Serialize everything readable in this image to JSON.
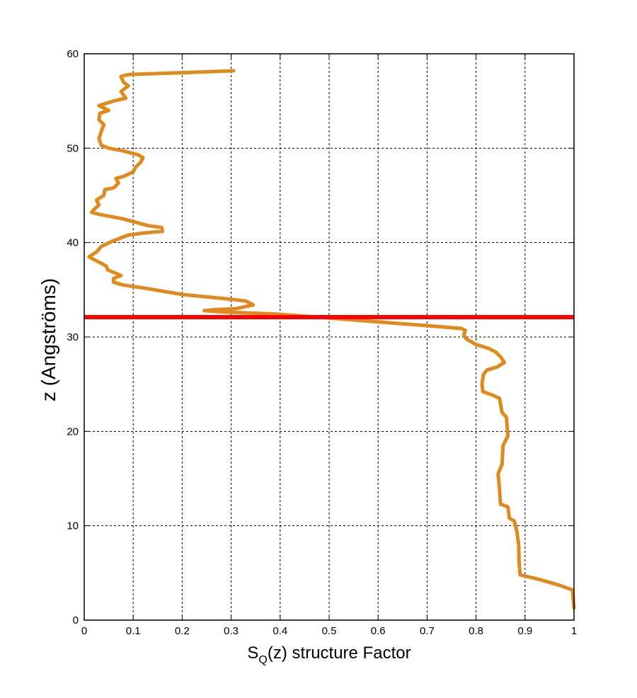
{
  "chart_data": {
    "type": "line",
    "xlabel_main": "S",
    "xlabel_sub": "Q",
    "xlabel_rest": "(z) structure Factor",
    "ylabel": "z (Angströms)",
    "xlim": [
      0,
      1
    ],
    "ylim": [
      0,
      60
    ],
    "xticks": [
      0,
      0.1,
      0.2,
      0.3,
      0.4,
      0.5,
      0.6,
      0.7,
      0.8,
      0.9,
      1
    ],
    "xtick_labels": [
      "0",
      "0.1",
      "0.2",
      "0.3",
      "0.4",
      "0.5",
      "0.6",
      "0.7",
      "0.8",
      "0.9",
      "1"
    ],
    "yticks": [
      0,
      10,
      20,
      30,
      40,
      50,
      60
    ],
    "ytick_labels": [
      "0",
      "10",
      "20",
      "30",
      "40",
      "50",
      "60"
    ],
    "grid": true,
    "reference_line": {
      "orientation": "horizontal",
      "y": 32.1,
      "color": "#ff0000"
    },
    "series": [
      {
        "color": "#e08a1e",
        "points": [
          [
            1.0,
            1.3
          ],
          [
            0.997,
            3.2
          ],
          [
            0.97,
            3.7
          ],
          [
            0.93,
            4.3
          ],
          [
            0.89,
            4.8
          ],
          [
            0.888,
            6.0
          ],
          [
            0.887,
            8.0
          ],
          [
            0.883,
            9.5
          ],
          [
            0.878,
            10.5
          ],
          [
            0.868,
            10.8
          ],
          [
            0.865,
            12.0
          ],
          [
            0.85,
            12.3
          ],
          [
            0.847,
            14.5
          ],
          [
            0.845,
            15.5
          ],
          [
            0.853,
            16.5
          ],
          [
            0.855,
            18.5
          ],
          [
            0.865,
            19.5
          ],
          [
            0.862,
            21.5
          ],
          [
            0.853,
            22.0
          ],
          [
            0.848,
            23.5
          ],
          [
            0.836,
            23.8
          ],
          [
            0.814,
            24.2
          ],
          [
            0.812,
            25.0
          ],
          [
            0.815,
            26.0
          ],
          [
            0.822,
            26.5
          ],
          [
            0.842,
            26.8
          ],
          [
            0.858,
            27.3
          ],
          [
            0.85,
            27.9
          ],
          [
            0.84,
            28.4
          ],
          [
            0.825,
            28.8
          ],
          [
            0.8,
            29.2
          ],
          [
            0.78,
            29.8
          ],
          [
            0.775,
            30.2
          ],
          [
            0.778,
            30.7
          ],
          [
            0.77,
            30.9
          ],
          [
            0.7,
            31.2
          ],
          [
            0.6,
            31.6
          ],
          [
            0.5,
            32.0
          ],
          [
            0.45,
            32.2
          ],
          [
            0.4,
            32.4
          ],
          [
            0.36,
            32.5
          ],
          [
            0.3,
            32.6
          ],
          [
            0.27,
            32.7
          ],
          [
            0.245,
            32.8
          ],
          [
            0.27,
            32.9
          ],
          [
            0.31,
            33.0
          ],
          [
            0.345,
            33.4
          ],
          [
            0.33,
            33.8
          ],
          [
            0.3,
            34.0
          ],
          [
            0.2,
            34.5
          ],
          [
            0.12,
            35.2
          ],
          [
            0.08,
            35.5
          ],
          [
            0.06,
            35.8
          ],
          [
            0.06,
            36.2
          ],
          [
            0.075,
            36.5
          ],
          [
            0.062,
            36.8
          ],
          [
            0.048,
            37.1
          ],
          [
            0.045,
            37.5
          ],
          [
            0.035,
            37.8
          ],
          [
            0.02,
            38.2
          ],
          [
            0.01,
            38.5
          ],
          [
            0.025,
            39.0
          ],
          [
            0.035,
            39.6
          ],
          [
            0.06,
            40.2
          ],
          [
            0.09,
            40.8
          ],
          [
            0.12,
            41.0
          ],
          [
            0.16,
            41.2
          ],
          [
            0.158,
            41.6
          ],
          [
            0.13,
            41.8
          ],
          [
            0.08,
            42.5
          ],
          [
            0.03,
            43.0
          ],
          [
            0.015,
            43.2
          ],
          [
            0.02,
            43.5
          ],
          [
            0.03,
            44.0
          ],
          [
            0.025,
            44.5
          ],
          [
            0.04,
            45.0
          ],
          [
            0.042,
            45.6
          ],
          [
            0.06,
            45.8
          ],
          [
            0.07,
            46.3
          ],
          [
            0.065,
            46.8
          ],
          [
            0.08,
            47.0
          ],
          [
            0.1,
            47.5
          ],
          [
            0.105,
            48.0
          ],
          [
            0.115,
            48.5
          ],
          [
            0.12,
            49.0
          ],
          [
            0.11,
            49.3
          ],
          [
            0.08,
            49.7
          ],
          [
            0.05,
            50.0
          ],
          [
            0.035,
            50.3
          ],
          [
            0.03,
            51.0
          ],
          [
            0.035,
            51.8
          ],
          [
            0.04,
            52.5
          ],
          [
            0.03,
            53.0
          ],
          [
            0.032,
            53.7
          ],
          [
            0.05,
            54.0
          ],
          [
            0.03,
            54.5
          ],
          [
            0.06,
            55.0
          ],
          [
            0.085,
            55.3
          ],
          [
            0.075,
            56.0
          ],
          [
            0.09,
            56.6
          ],
          [
            0.08,
            57.0
          ],
          [
            0.075,
            57.6
          ],
          [
            0.09,
            57.8
          ],
          [
            0.2,
            58.0
          ],
          [
            0.305,
            58.2
          ]
        ]
      }
    ]
  }
}
